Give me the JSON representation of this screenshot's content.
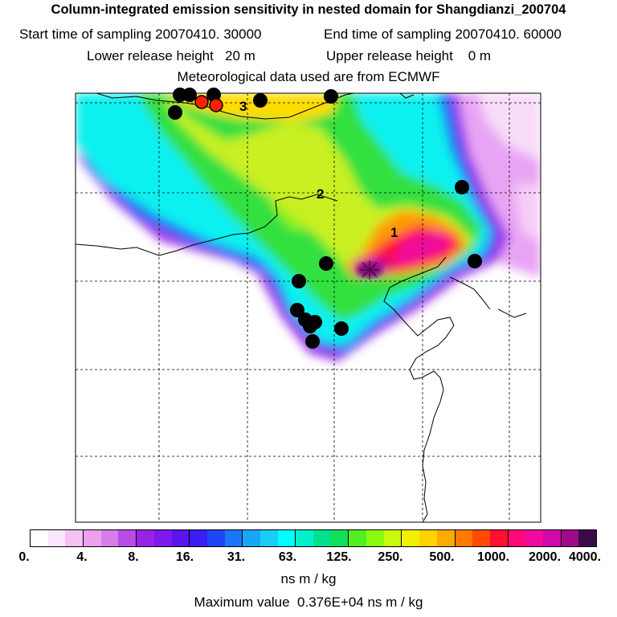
{
  "header": {
    "title": "Column-integrated emission sensitivity in nested domain for Shangdianzi_200704",
    "start_label": "Start time of sampling 20070410. 30000",
    "end_label": "End time of sampling 20070410. 60000",
    "lower_label": "Lower release height   20 m",
    "upper_label": "Upper release height    0 m",
    "met_label": "Meteorological data used are from ECMWF"
  },
  "map": {
    "contour_labels": [
      "1",
      "2",
      "3"
    ],
    "station_colors": {
      "black": "#000000",
      "red": "#ff2200"
    }
  },
  "colorbar": {
    "colors": [
      "#ffffff",
      "#fce6fc",
      "#f5c2f5",
      "#eca0ee",
      "#d77de8",
      "#b94ce6",
      "#9a22e6",
      "#7f18ea",
      "#5a14ee",
      "#3a1ef2",
      "#1e46f5",
      "#1976f7",
      "#1aa6f8",
      "#17cef8",
      "#00ffff",
      "#00f0c8",
      "#00e08e",
      "#10e05a",
      "#50f020",
      "#8cfa10",
      "#c8fa10",
      "#f0f000",
      "#ffd200",
      "#ffaa00",
      "#ff7a00",
      "#ff4a00",
      "#ff1030",
      "#ff0a78",
      "#f00aa0",
      "#d00aa8",
      "#a00a8a",
      "#3c0a4a"
    ],
    "tick_labels": [
      "0.",
      "4.",
      "8.",
      "16.",
      "31.",
      "63.",
      "125.",
      "250.",
      "500.",
      "1000.",
      "2000.",
      "4000."
    ],
    "units": "ns m / kg"
  },
  "footer": {
    "max_value": "Maximum value  0.376E+04 ns m / kg"
  }
}
